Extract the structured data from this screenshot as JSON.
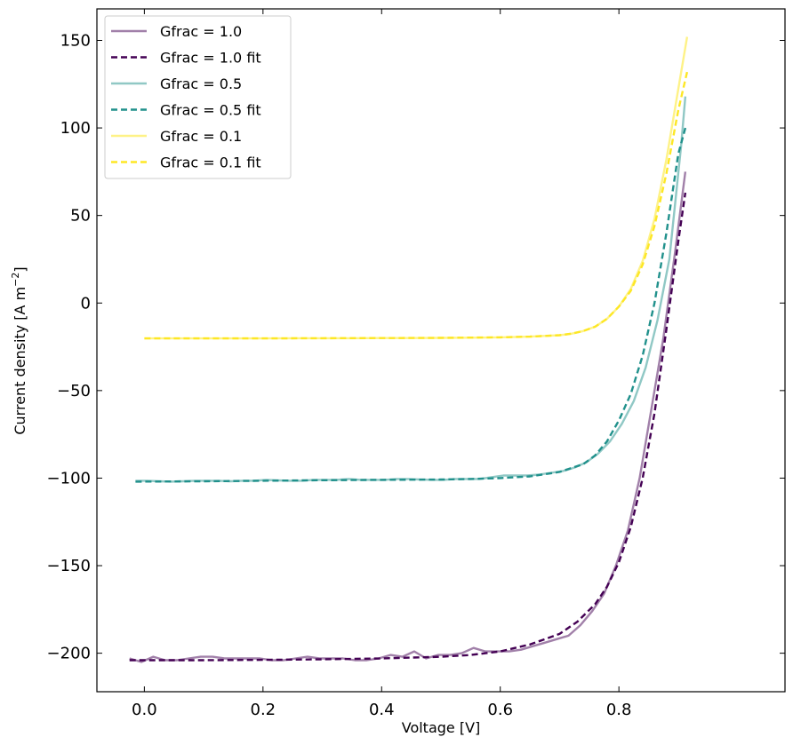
{
  "chart_data": {
    "type": "line",
    "xlabel": "Voltage [V]",
    "ylabel": "Current density [A m",
    "ylabel_sup": "−2",
    "ylabel_close": "]",
    "xlim": [
      -0.08,
      1.08
    ],
    "ylim": [
      -222,
      168
    ],
    "xticks": [
      0.0,
      0.2,
      0.4,
      0.6,
      0.8
    ],
    "xtick_labels": [
      "0.0",
      "0.2",
      "0.4",
      "0.6",
      "0.8"
    ],
    "yticks": [
      150,
      100,
      50,
      0,
      -50,
      -100,
      -150,
      -200
    ],
    "ytick_labels": [
      "150",
      "100",
      "50",
      "0",
      "−50",
      "−100",
      "−150",
      "−200"
    ],
    "legend_position": "top-left",
    "series": [
      {
        "name": "Gfrac = 1.0",
        "color": "#440154",
        "opacity": 0.5,
        "dashed": false,
        "x": [
          -0.025,
          -0.005,
          0.015,
          0.035,
          0.055,
          0.075,
          0.095,
          0.115,
          0.135,
          0.155,
          0.175,
          0.195,
          0.215,
          0.235,
          0.255,
          0.275,
          0.295,
          0.315,
          0.335,
          0.355,
          0.375,
          0.395,
          0.415,
          0.435,
          0.455,
          0.475,
          0.495,
          0.515,
          0.535,
          0.555,
          0.575,
          0.595,
          0.615,
          0.635,
          0.655,
          0.675,
          0.695,
          0.715,
          0.735,
          0.755,
          0.775,
          0.795,
          0.815,
          0.835,
          0.855,
          0.875,
          0.895,
          0.912
        ],
        "y": [
          -203,
          -205,
          -202,
          -204,
          -204,
          -203,
          -202,
          -202,
          -203,
          -203,
          -203,
          -203,
          -204,
          -204,
          -203,
          -202,
          -203,
          -203,
          -203,
          -204,
          -204,
          -203,
          -201,
          -202,
          -199,
          -203,
          -201,
          -201,
          -200,
          -197,
          -199,
          -199,
          -199,
          -198,
          -196,
          -194,
          -192,
          -190,
          -184,
          -176,
          -166,
          -150,
          -130,
          -100,
          -60,
          -20,
          30,
          75
        ]
      },
      {
        "name": "Gfrac = 1.0 fit",
        "color": "#440154",
        "opacity": 1.0,
        "dashed": true,
        "x": [
          -0.025,
          0.05,
          0.1,
          0.2,
          0.3,
          0.4,
          0.5,
          0.55,
          0.6,
          0.65,
          0.7,
          0.73,
          0.76,
          0.78,
          0.8,
          0.82,
          0.84,
          0.86,
          0.88,
          0.9,
          0.912
        ],
        "y": [
          -204,
          -204,
          -204,
          -203.8,
          -203.5,
          -203,
          -202,
          -201,
          -199,
          -195,
          -189,
          -182,
          -172,
          -162,
          -148,
          -128,
          -100,
          -63,
          -15,
          35,
          63
        ]
      },
      {
        "name": "Gfrac = 0.5",
        "color": "#21918c",
        "opacity": 0.5,
        "dashed": false,
        "x": [
          -0.015,
          0.005,
          0.025,
          0.045,
          0.065,
          0.085,
          0.105,
          0.125,
          0.145,
          0.165,
          0.185,
          0.205,
          0.225,
          0.245,
          0.265,
          0.285,
          0.305,
          0.325,
          0.345,
          0.365,
          0.385,
          0.405,
          0.425,
          0.445,
          0.465,
          0.485,
          0.505,
          0.525,
          0.545,
          0.565,
          0.585,
          0.605,
          0.625,
          0.645,
          0.665,
          0.685,
          0.705,
          0.725,
          0.745,
          0.765,
          0.785,
          0.805,
          0.825,
          0.845,
          0.865,
          0.885,
          0.905,
          0.912
        ],
        "y": [
          -101.5,
          -101.5,
          -101.8,
          -102,
          -101.8,
          -101.5,
          -101.5,
          -101.5,
          -101.8,
          -101.5,
          -101.5,
          -101,
          -101.3,
          -101.5,
          -101.5,
          -101,
          -101,
          -101,
          -100.5,
          -101,
          -101,
          -101,
          -100.5,
          -100.5,
          -100.8,
          -101,
          -101,
          -100.5,
          -100.5,
          -100.5,
          -99.5,
          -98.5,
          -98.5,
          -98.5,
          -98,
          -97,
          -96,
          -94,
          -91,
          -86,
          -79,
          -69,
          -56,
          -37,
          -10,
          25,
          90,
          118
        ]
      },
      {
        "name": "Gfrac = 0.5 fit",
        "color": "#21918c",
        "opacity": 1.0,
        "dashed": true,
        "x": [
          -0.015,
          0.1,
          0.2,
          0.3,
          0.4,
          0.5,
          0.55,
          0.6,
          0.65,
          0.7,
          0.74,
          0.76,
          0.78,
          0.8,
          0.82,
          0.84,
          0.86,
          0.88,
          0.9,
          0.912
        ],
        "y": [
          -102,
          -101.8,
          -101.5,
          -101.2,
          -101,
          -100.8,
          -100.5,
          -100,
          -99,
          -96.5,
          -92,
          -87,
          -79,
          -67,
          -52,
          -30,
          0,
          40,
          85,
          100
        ]
      },
      {
        "name": "Gfrac = 0.1",
        "color": "#fde725",
        "opacity": 0.55,
        "dashed": false,
        "x": [
          0.0,
          0.05,
          0.1,
          0.15,
          0.2,
          0.25,
          0.3,
          0.35,
          0.4,
          0.45,
          0.5,
          0.55,
          0.6,
          0.65,
          0.7,
          0.72,
          0.74,
          0.76,
          0.78,
          0.8,
          0.82,
          0.84,
          0.86,
          0.88,
          0.9,
          0.915
        ],
        "y": [
          -20.2,
          -20.2,
          -20.2,
          -20.2,
          -20.2,
          -20.1,
          -20.1,
          -20.1,
          -20,
          -20,
          -19.9,
          -19.8,
          -19.6,
          -19.2,
          -18.4,
          -17.5,
          -16,
          -13.5,
          -9,
          -2,
          8,
          24,
          48,
          82,
          122,
          152
        ]
      },
      {
        "name": "Gfrac = 0.1 fit",
        "color": "#fde725",
        "opacity": 1.0,
        "dashed": true,
        "x": [
          0.0,
          0.1,
          0.2,
          0.3,
          0.4,
          0.5,
          0.6,
          0.65,
          0.7,
          0.72,
          0.74,
          0.76,
          0.78,
          0.8,
          0.82,
          0.84,
          0.86,
          0.88,
          0.9,
          0.915
        ],
        "y": [
          -20.2,
          -20.2,
          -20.2,
          -20.1,
          -20,
          -19.9,
          -19.6,
          -19.2,
          -18.4,
          -17.5,
          -16,
          -13.5,
          -9,
          -2,
          7,
          22,
          44,
          74,
          110,
          132
        ]
      }
    ]
  }
}
